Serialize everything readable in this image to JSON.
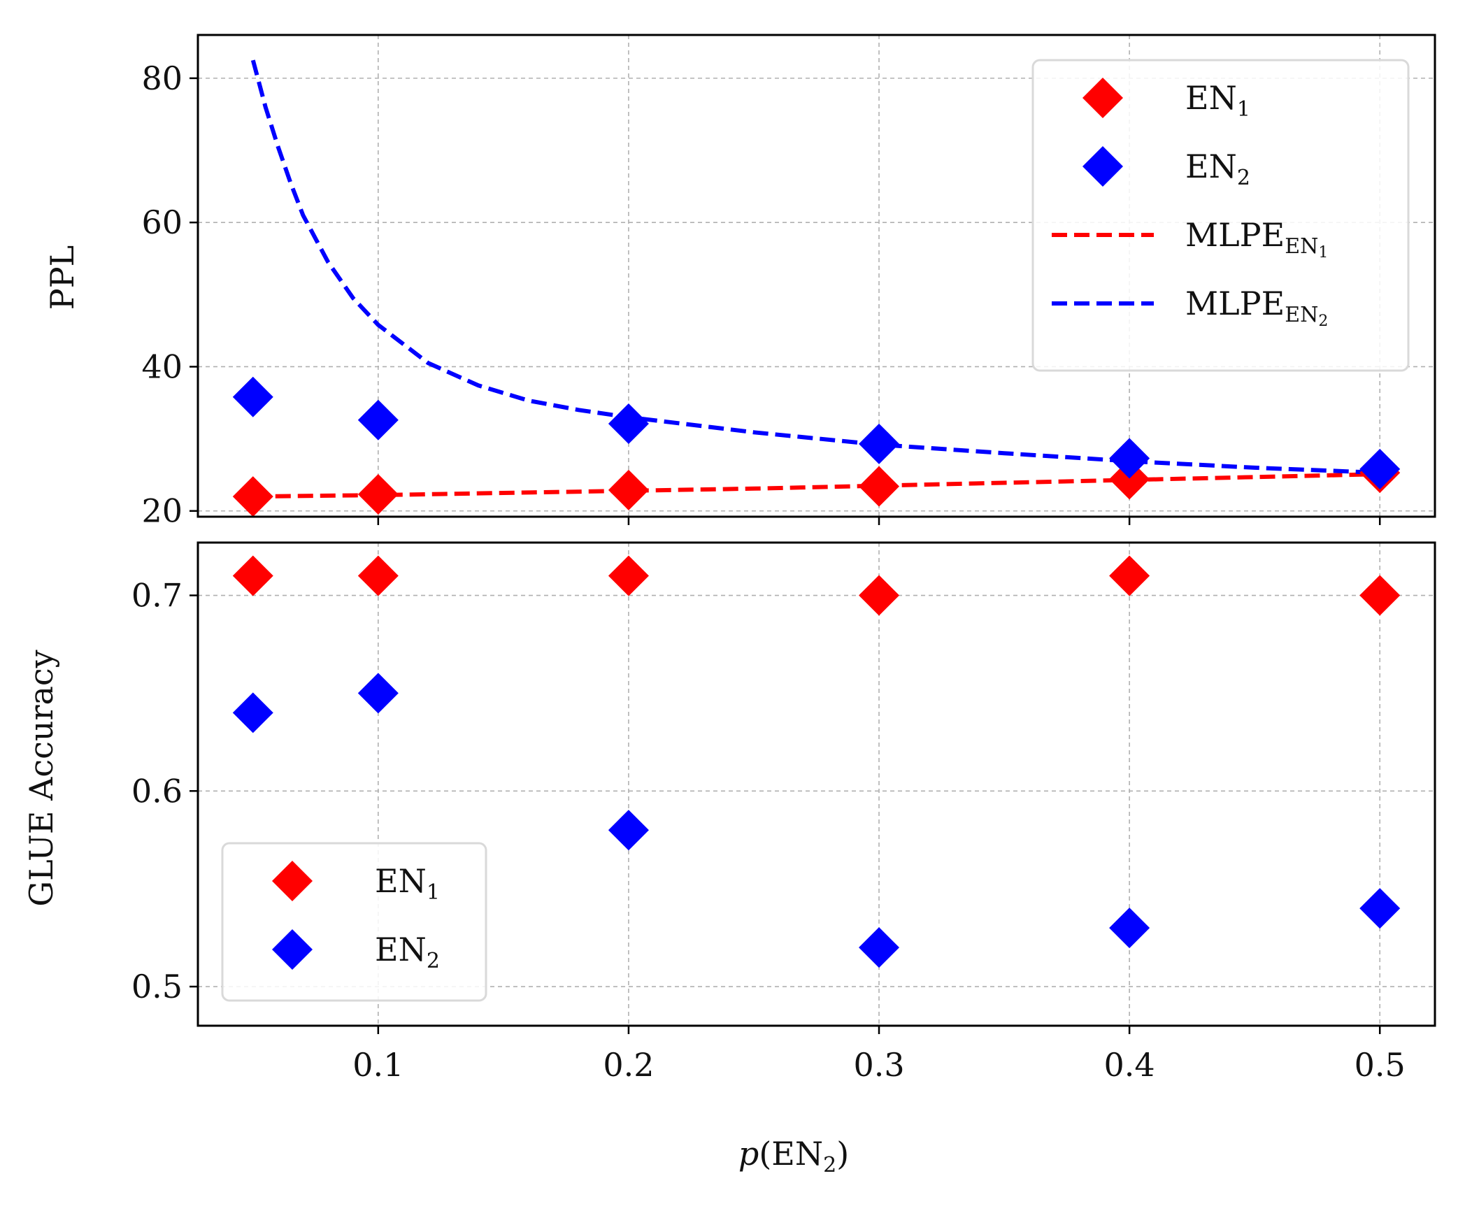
{
  "chart_data": [
    {
      "type": "scatter",
      "name": "top",
      "ylabel": "PPL",
      "xlim": [
        0.028,
        0.522
      ],
      "ylim": [
        19.2,
        86
      ],
      "x_ticks": [
        0.1,
        0.2,
        0.3,
        0.4,
        0.5
      ],
      "y_ticks": [
        20,
        40,
        60,
        80
      ],
      "y_tick_labels": [
        "20",
        "40",
        "60",
        "80"
      ],
      "grid": true,
      "legend_position": "upper right",
      "series": [
        {
          "name": "EN",
          "subscript": "1",
          "kind": "marker",
          "color": "#ff0000",
          "x": [
            0.05,
            0.1,
            0.2,
            0.3,
            0.4,
            0.5
          ],
          "y": [
            22.0,
            22.3,
            22.9,
            23.4,
            24.4,
            25.3
          ]
        },
        {
          "name": "EN",
          "subscript": "2",
          "kind": "marker",
          "color": "#0000ff",
          "x": [
            0.05,
            0.1,
            0.2,
            0.3,
            0.4,
            0.5
          ],
          "y": [
            35.8,
            32.6,
            32.1,
            29.3,
            27.3,
            25.8
          ]
        },
        {
          "name": "MLPE",
          "subscript": "EN",
          "subscript2": "1",
          "kind": "dashed-line",
          "color": "#ff0000",
          "x": [
            0.05,
            0.1,
            0.15,
            0.2,
            0.25,
            0.3,
            0.35,
            0.4,
            0.45,
            0.5
          ],
          "y": [
            22.0,
            22.2,
            22.5,
            22.8,
            23.1,
            23.5,
            23.9,
            24.3,
            24.7,
            25.1
          ]
        },
        {
          "name": "MLPE",
          "subscript": "EN",
          "subscript2": "2",
          "kind": "dashed-line",
          "color": "#0000ff",
          "x": [
            0.05,
            0.055,
            0.06,
            0.065,
            0.07,
            0.08,
            0.09,
            0.1,
            0.12,
            0.14,
            0.16,
            0.18,
            0.2,
            0.25,
            0.3,
            0.35,
            0.4,
            0.45,
            0.5
          ],
          "y": [
            82.5,
            76.0,
            70.5,
            65.5,
            61.0,
            54.5,
            49.5,
            45.8,
            40.5,
            37.4,
            35.3,
            34.0,
            33.0,
            30.9,
            29.2,
            28.0,
            26.9,
            26.0,
            25.3
          ]
        }
      ]
    },
    {
      "type": "scatter",
      "name": "bottom",
      "xlabel": "p(EN2)",
      "ylabel": "GLUE Accuracy",
      "xlim": [
        0.028,
        0.522
      ],
      "ylim": [
        0.48,
        0.727
      ],
      "x_ticks": [
        0.1,
        0.2,
        0.3,
        0.4,
        0.5
      ],
      "x_tick_labels": [
        "0.1",
        "0.2",
        "0.3",
        "0.4",
        "0.5"
      ],
      "y_ticks": [
        0.5,
        0.6,
        0.7
      ],
      "y_tick_labels": [
        "0.5",
        "0.6",
        "0.7"
      ],
      "grid": true,
      "legend_position": "lower left",
      "series": [
        {
          "name": "EN",
          "subscript": "1",
          "kind": "marker",
          "color": "#ff0000",
          "x": [
            0.05,
            0.1,
            0.2,
            0.3,
            0.4,
            0.5
          ],
          "y": [
            0.71,
            0.71,
            0.71,
            0.7,
            0.71,
            0.7
          ]
        },
        {
          "name": "EN",
          "subscript": "2",
          "kind": "marker",
          "color": "#0000ff",
          "x": [
            0.05,
            0.1,
            0.2,
            0.3,
            0.4,
            0.5
          ],
          "y": [
            0.64,
            0.65,
            0.58,
            0.52,
            0.53,
            0.54
          ]
        }
      ]
    }
  ],
  "xlabel_parts": {
    "p": "p",
    "open": "(EN",
    "sub": "2",
    "close": ")"
  }
}
